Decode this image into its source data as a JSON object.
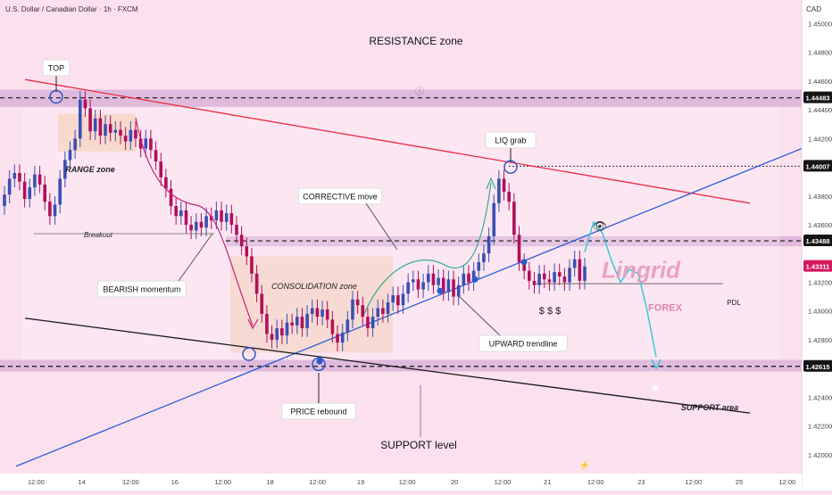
{
  "header": {
    "symbol": "U.S. Dollar / Canadian Dollar · 1h · FXCM",
    "currency": "CAD"
  },
  "chart_data": {
    "type": "candlestick",
    "ylim": [
      1.419,
      1.4512
    ],
    "y_ticks": [
      "1.45000",
      "1.44800",
      "1.44600",
      "1.44400",
      "1.44200",
      "1.43800",
      "1.43600",
      "1.43200",
      "1.43000",
      "1.42800",
      "1.42400",
      "1.42200",
      "1.42000"
    ],
    "x_ticks": [
      {
        "label": "12:00",
        "pos": 0.045
      },
      {
        "label": "14",
        "pos": 0.102
      },
      {
        "label": "12:00",
        "pos": 0.163
      },
      {
        "label": "16",
        "pos": 0.218
      },
      {
        "label": "12:00",
        "pos": 0.278
      },
      {
        "label": "18",
        "pos": 0.337
      },
      {
        "label": "12:00",
        "pos": 0.396
      },
      {
        "label": "19",
        "pos": 0.45
      },
      {
        "label": "12:00",
        "pos": 0.508
      },
      {
        "label": "20",
        "pos": 0.567
      },
      {
        "label": "12:00",
        "pos": 0.627
      },
      {
        "label": "21",
        "pos": 0.683
      },
      {
        "label": "12:00",
        "pos": 0.743
      },
      {
        "label": "23",
        "pos": 0.8
      },
      {
        "label": "12:00",
        "pos": 0.865
      },
      {
        "label": "25",
        "pos": 0.922
      },
      {
        "label": "12:00",
        "pos": 0.982
      }
    ],
    "price_badges": [
      {
        "value": "1.44483",
        "price": 1.44483
      },
      {
        "value": "1.44007",
        "price": 1.44007
      },
      {
        "value": "1.43488",
        "price": 1.43488
      },
      {
        "value": "1.43311",
        "price": 1.43311,
        "highlight": true
      },
      {
        "value": "1.42615",
        "price": 1.42615
      }
    ],
    "close_series": [
      1.4381,
      1.4392,
      1.4396,
      1.439,
      1.4378,
      1.4386,
      1.4395,
      1.4388,
      1.4376,
      1.4366,
      1.4374,
      1.4392,
      1.4405,
      1.4412,
      1.442,
      1.4447,
      1.4441,
      1.4425,
      1.4434,
      1.4422,
      1.443,
      1.4424,
      1.4426,
      1.4422,
      1.4418,
      1.4426,
      1.442,
      1.4413,
      1.442,
      1.4412,
      1.4404,
      1.4393,
      1.4385,
      1.4373,
      1.4366,
      1.437,
      1.436,
      1.4356,
      1.4362,
      1.4358,
      1.4366,
      1.4363,
      1.437,
      1.4362,
      1.4368,
      1.436,
      1.4353,
      1.4345,
      1.4338,
      1.4326,
      1.4312,
      1.4298,
      1.4284,
      1.428,
      1.4288,
      1.4283,
      1.4292,
      1.429,
      1.4296,
      1.4288,
      1.4298,
      1.4302,
      1.4296,
      1.4301,
      1.4294,
      1.4284,
      1.4278,
      1.4285,
      1.4294,
      1.4308,
      1.4304,
      1.4296,
      1.4288,
      1.4296,
      1.4302,
      1.4298,
      1.4306,
      1.4311,
      1.4304,
      1.4312,
      1.432,
      1.4322,
      1.4315,
      1.432,
      1.4326,
      1.4318,
      1.4323,
      1.4313,
      1.4322,
      1.431,
      1.4318,
      1.4326,
      1.432,
      1.4328,
      1.4334,
      1.434,
      1.4352,
      1.4375,
      1.4392,
      1.4383,
      1.4376,
      1.4353,
      1.4334,
      1.4328,
      1.4321,
      1.4318,
      1.4326,
      1.4322,
      1.432,
      1.4327,
      1.4324,
      1.432,
      1.433,
      1.4336,
      1.4321,
      1.4331
    ],
    "overlay_projection": [
      1.4341,
      1.4362,
      1.4354,
      1.4335,
      1.432,
      1.4329,
      1.4326,
      1.43,
      1.4268
    ],
    "zones": [
      {
        "name": "resistance",
        "from": 1.4442,
        "to": 1.4454
      },
      {
        "name": "middle",
        "from": 1.4345,
        "to": 1.4352
      },
      {
        "name": "support",
        "from": 1.4258,
        "to": 1.4266
      }
    ],
    "annotations": {
      "resistance_zone": "RESISTANCE zone",
      "top": "TOP",
      "range_zone": "RANGE zone",
      "breakout": "Breakout",
      "corrective_move": "CORRECTIVE move",
      "liq_grab": "LIQ grab",
      "bearish_momentum": "BEARISH momentum",
      "consolidation_zone": "CONSOLIDATION zone",
      "upward_trendline": "UPWARD trendline",
      "price_rebound": "PRICE rebound",
      "pdl": "PDL",
      "dollars": "$ $ $",
      "support_area": "SUPPORT area",
      "support_level": "SUPPORT level",
      "watermark_main": "Lingrid",
      "watermark_sub": "FOREX"
    },
    "colors": {
      "up": "#3a4fb4",
      "down": "#b10f5a",
      "resistance_line": "#ea2b44",
      "trend_line": "#2f5fd8",
      "support_line": "#161616",
      "projection": "#28c8d8",
      "badge": "#151515",
      "highlight_badge": "#d5185c"
    }
  }
}
